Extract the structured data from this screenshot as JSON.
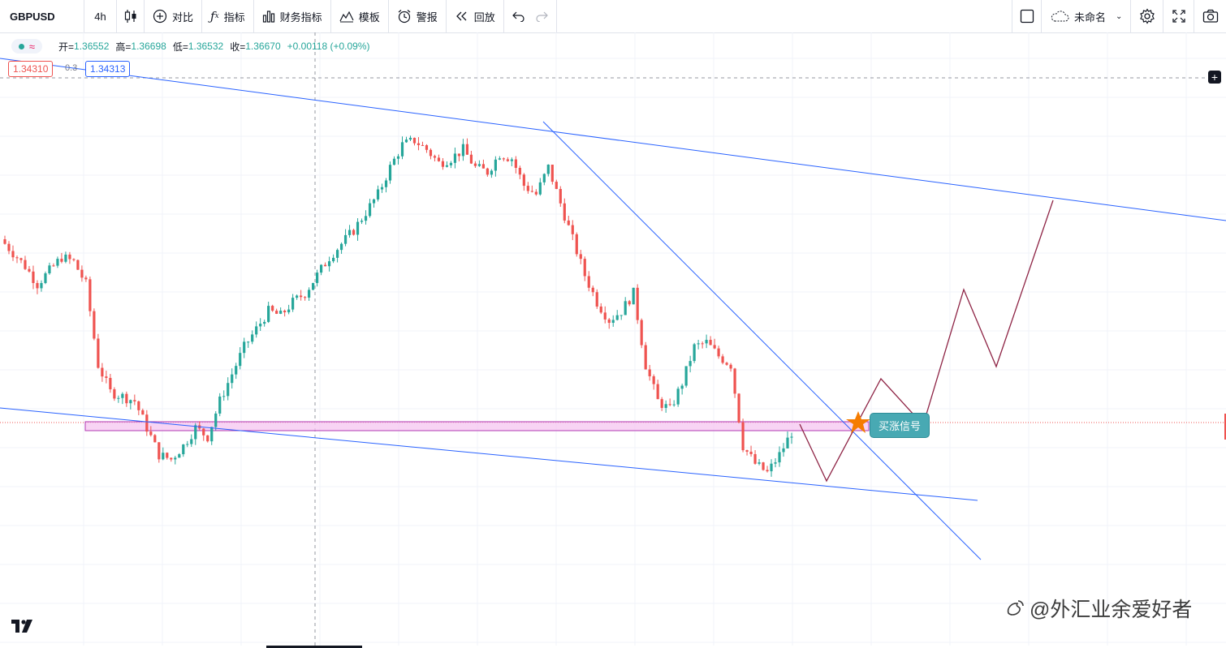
{
  "toolbar": {
    "symbol": "GBPUSD",
    "interval": "4h",
    "compare_label": "对比",
    "indicators_label": "指标",
    "financials_label": "财务指标",
    "templates_label": "模板",
    "alert_label": "警报",
    "replay_label": "回放",
    "layout_name": "未命名",
    "icons": {
      "chart_type": "candles-icon",
      "compare": "plus-circle-icon",
      "indicators": "fx-icon",
      "financials": "bar-chart-icon",
      "templates": "templates-icon",
      "alert": "alarm-clock-icon",
      "replay": "rewind-icon",
      "undo": "undo-icon",
      "redo": "redo-icon",
      "layout": "square-icon",
      "cloud": "cloud-icon",
      "settings": "gear-icon",
      "fullscreen": "fullscreen-icon",
      "snapshot": "camera-icon"
    }
  },
  "legend": {
    "open_label": "开=",
    "open": "1.36552",
    "high_label": "高=",
    "high": "1.36698",
    "low_label": "低=",
    "low": "1.36532",
    "close_label": "收=",
    "close": "1.36670",
    "change": "+0.00118 (+0.09%)"
  },
  "price_boxes": {
    "left": "1.34310",
    "middle": "0.3",
    "right": "1.34313"
  },
  "annotations": {
    "buy_signal": "买涨信号"
  },
  "watermark": "@外汇业余爱好者",
  "colors": {
    "up": "#26a69a",
    "down": "#ef5350",
    "trendline": "#2962ff",
    "projection": "#8e2445",
    "zone_fill": "#f5c6f0",
    "zone_border": "#b23ab3",
    "signal_star": "#f57c00",
    "signal_label": "#48a9b3"
  },
  "chart_data": {
    "type": "candlestick",
    "symbol": "GBPUSD",
    "interval": "4h",
    "close_sequence": [
      1.356,
      1.3545,
      1.353,
      1.351,
      1.3525,
      1.354,
      1.3535,
      1.351,
      1.342,
      1.339,
      1.3385,
      1.338,
      1.335,
      1.332,
      1.3315,
      1.333,
      1.335,
      1.334,
      1.338,
      1.341,
      1.344,
      1.346,
      1.348,
      1.3475,
      1.349,
      1.35,
      1.352,
      1.354,
      1.3555,
      1.357,
      1.359,
      1.361,
      1.364,
      1.3665,
      1.367,
      1.366,
      1.3645,
      1.365,
      1.366,
      1.364,
      1.3635,
      1.3655,
      1.365,
      1.362,
      1.361,
      1.364,
      1.36,
      1.356,
      1.352,
      1.349,
      1.347,
      1.348,
      1.35,
      1.342,
      1.338,
      1.337,
      1.34,
      1.344,
      1.3445,
      1.343,
      1.342,
      1.333,
      1.331,
      1.33,
      1.332,
      1.3345
    ],
    "projection_note": "买涨信号",
    "signal_price": 1.3431
  }
}
